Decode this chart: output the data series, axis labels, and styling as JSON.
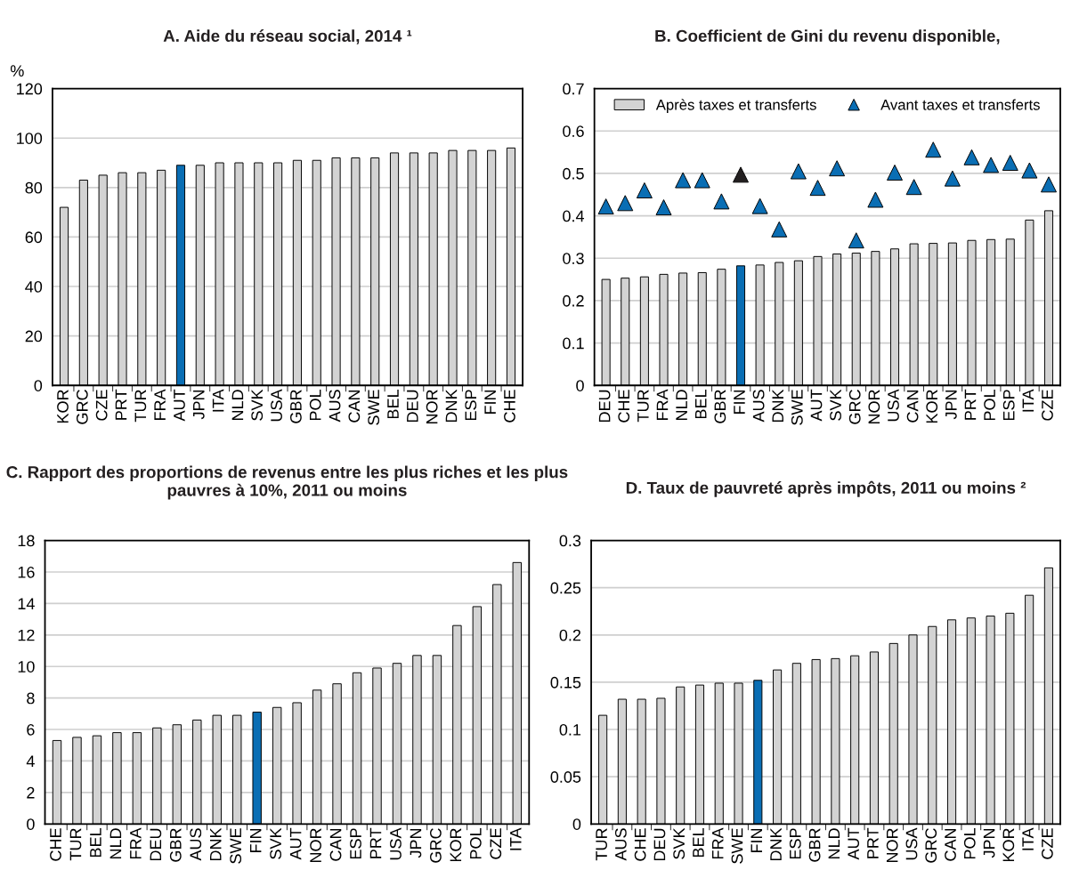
{
  "chart_data": [
    {
      "type": "bar",
      "title": "A. Aide du réseau social, 2014 ¹",
      "ylabel": "%",
      "categories": [
        "KOR",
        "GRC",
        "CZE",
        "PRT",
        "TUR",
        "FRA",
        "AUT",
        "JPN",
        "ITA",
        "NLD",
        "SVK",
        "USA",
        "GBR",
        "POL",
        "AUS",
        "CAN",
        "SWE",
        "BEL",
        "DEU",
        "NOR",
        "DNK",
        "ESP",
        "FIN",
        "CHE"
      ],
      "series": [
        {
          "values": [
            72,
            83,
            85,
            86,
            86,
            87,
            89,
            89,
            90,
            90,
            90,
            90,
            91,
            91,
            92,
            92,
            92,
            94,
            94,
            94,
            95,
            95,
            95,
            96
          ],
          "colors": [
            "#d3d3d3",
            "#d3d3d3",
            "#d3d3d3",
            "#d3d3d3",
            "#d3d3d3",
            "#d3d3d3",
            "#0a6eb4",
            "#d3d3d3",
            "#d3d3d3",
            "#d3d3d3",
            "#d3d3d3",
            "#d3d3d3",
            "#d3d3d3",
            "#d3d3d3",
            "#d3d3d3",
            "#d3d3d3",
            "#d3d3d3",
            "#d3d3d3",
            "#d3d3d3",
            "#d3d3d3",
            "#d3d3d3",
            "#d3d3d3",
            "#d3d3d3",
            "#d3d3d3"
          ]
        }
      ],
      "ylim": [
        0,
        120
      ],
      "yticks": [
        0,
        20,
        40,
        60,
        80,
        100,
        120
      ],
      "grid": "y",
      "legend": false
    },
    {
      "type": "bar",
      "title": "B. Coefficient de Gini du revenu disponible,",
      "categories": [
        "DEU",
        "CHE",
        "TUR",
        "FRA",
        "NLD",
        "BEL",
        "GBR",
        "FIN",
        "AUS",
        "DNK",
        "SWE",
        "AUT",
        "SVK",
        "GRC",
        "NOR",
        "USA",
        "CAN",
        "KOR",
        "JPN",
        "PRT",
        "POL",
        "ESP",
        "ITA",
        "CZE"
      ],
      "series": [
        {
          "name": "Après taxes et transferts",
          "color": "#d3d3d3",
          "values": [
            0.25,
            0.253,
            0.256,
            0.262,
            0.265,
            0.266,
            0.274,
            0.282,
            0.284,
            0.29,
            0.294,
            0.304,
            0.31,
            0.312,
            0.316,
            0.322,
            0.334,
            0.335,
            0.336,
            0.342,
            0.344,
            0.345,
            0.39,
            0.412
          ],
          "colors": [
            "#d3d3d3",
            "#d3d3d3",
            "#d3d3d3",
            "#d3d3d3",
            "#d3d3d3",
            "#d3d3d3",
            "#d3d3d3",
            "#0a6eb4",
            "#d3d3d3",
            "#d3d3d3",
            "#d3d3d3",
            "#d3d3d3",
            "#d3d3d3",
            "#d3d3d3",
            "#d3d3d3",
            "#d3d3d3",
            "#d3d3d3",
            "#d3d3d3",
            "#d3d3d3",
            "#d3d3d3",
            "#d3d3d3",
            "#d3d3d3",
            "#d3d3d3",
            "#d3d3d3"
          ]
        },
        {
          "type": "scatter",
          "name": "Avant taxes et transferts",
          "color": "#0a6eb4",
          "marker": "triangle",
          "values": [
            0.422,
            0.43,
            0.46,
            0.42,
            0.484,
            0.484,
            0.434,
            0.497,
            0.423,
            0.368,
            0.505,
            0.466,
            0.512,
            0.342,
            0.438,
            0.502,
            0.468,
            0.556,
            0.488,
            0.538,
            0.52,
            0.525,
            0.507,
            0.474
          ],
          "colors": [
            "#0a6eb4",
            "#0a6eb4",
            "#0a6eb4",
            "#0a6eb4",
            "#0a6eb4",
            "#0a6eb4",
            "#0a6eb4",
            "#231f20",
            "#0a6eb4",
            "#0a6eb4",
            "#0a6eb4",
            "#0a6eb4",
            "#0a6eb4",
            "#0a6eb4",
            "#0a6eb4",
            "#0a6eb4",
            "#0a6eb4",
            "#0a6eb4",
            "#0a6eb4",
            "#0a6eb4",
            "#0a6eb4",
            "#0a6eb4",
            "#0a6eb4",
            "#0a6eb4"
          ]
        }
      ],
      "ylim": [
        0,
        0.7
      ],
      "yticks": [
        0,
        0.1,
        0.2,
        0.3,
        0.4,
        0.5,
        0.6,
        0.7
      ],
      "grid": "y",
      "legend": "top"
    },
    {
      "type": "bar",
      "title": "C. Rapport des proportions de revenus entre les plus riches et les plus pauvres à 10%, 2011 ou moins",
      "categories": [
        "CHE",
        "TUR",
        "BEL",
        "NLD",
        "FRA",
        "DEU",
        "GBR",
        "AUS",
        "DNK",
        "SWE",
        "FIN",
        "SVK",
        "AUT",
        "NOR",
        "CAN",
        "ESP",
        "PRT",
        "USA",
        "JPN",
        "GRC",
        "KOR",
        "POL",
        "CZE",
        "ITA"
      ],
      "series": [
        {
          "values": [
            5.3,
            5.5,
            5.6,
            5.8,
            5.8,
            6.1,
            6.3,
            6.6,
            6.9,
            6.9,
            7.1,
            7.4,
            7.7,
            8.5,
            8.9,
            9.6,
            9.9,
            10.2,
            10.7,
            10.7,
            12.6,
            13.8,
            15.2,
            16.6
          ],
          "colors": [
            "#d3d3d3",
            "#d3d3d3",
            "#d3d3d3",
            "#d3d3d3",
            "#d3d3d3",
            "#d3d3d3",
            "#d3d3d3",
            "#d3d3d3",
            "#d3d3d3",
            "#d3d3d3",
            "#0a6eb4",
            "#d3d3d3",
            "#d3d3d3",
            "#d3d3d3",
            "#d3d3d3",
            "#d3d3d3",
            "#d3d3d3",
            "#d3d3d3",
            "#d3d3d3",
            "#d3d3d3",
            "#d3d3d3",
            "#d3d3d3",
            "#d3d3d3",
            "#d3d3d3"
          ]
        }
      ],
      "ylim": [
        0,
        18
      ],
      "yticks": [
        0,
        2,
        4,
        6,
        8,
        10,
        12,
        14,
        16,
        18
      ],
      "grid": "y",
      "legend": false
    },
    {
      "type": "bar",
      "title": "D. Taux de pauvreté après impôts, 2011 ou moins ²",
      "categories": [
        "TUR",
        "AUS",
        "CHE",
        "DEU",
        "SVK",
        "BEL",
        "FRA",
        "SWE",
        "FIN",
        "DNK",
        "ESP",
        "GBR",
        "NLD",
        "AUT",
        "PRT",
        "NOR",
        "USA",
        "GRC",
        "CAN",
        "POL",
        "JPN",
        "KOR",
        "ITA",
        "CZE"
      ],
      "series": [
        {
          "values": [
            0.115,
            0.132,
            0.132,
            0.133,
            0.145,
            0.147,
            0.149,
            0.149,
            0.152,
            0.163,
            0.17,
            0.174,
            0.175,
            0.178,
            0.182,
            0.191,
            0.2,
            0.209,
            0.216,
            0.218,
            0.22,
            0.223,
            0.242,
            0.271
          ],
          "colors": [
            "#d3d3d3",
            "#d3d3d3",
            "#d3d3d3",
            "#d3d3d3",
            "#d3d3d3",
            "#d3d3d3",
            "#d3d3d3",
            "#d3d3d3",
            "#0a6eb4",
            "#d3d3d3",
            "#d3d3d3",
            "#d3d3d3",
            "#d3d3d3",
            "#d3d3d3",
            "#d3d3d3",
            "#d3d3d3",
            "#d3d3d3",
            "#d3d3d3",
            "#d3d3d3",
            "#d3d3d3",
            "#d3d3d3",
            "#d3d3d3",
            "#d3d3d3",
            "#d3d3d3"
          ]
        }
      ],
      "ylim": [
        0,
        0.3
      ],
      "yticks": [
        0,
        0.05,
        0.1,
        0.15,
        0.2,
        0.25,
        0.3
      ],
      "grid": "y",
      "legend": false
    }
  ]
}
